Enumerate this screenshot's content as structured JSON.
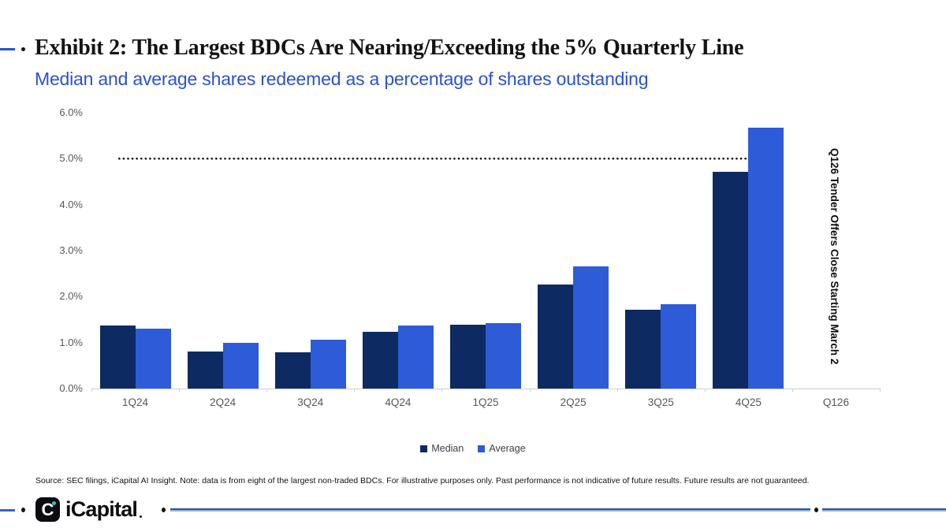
{
  "header": {
    "title": "Exhibit 2: The Largest BDCs Are Nearing/Exceeding the 5% Quarterly Line",
    "subtitle": "Median and average shares redeemed as a percentage of shares outstanding"
  },
  "chart_data": {
    "type": "bar",
    "categories": [
      "1Q24",
      "2Q24",
      "3Q24",
      "4Q24",
      "1Q25",
      "2Q25",
      "3Q25",
      "4Q25",
      "Q126"
    ],
    "series": [
      {
        "name": "Median",
        "color": "#0d2a63",
        "values": [
          1.37,
          0.81,
          0.79,
          1.24,
          1.39,
          2.27,
          1.71,
          4.71,
          null
        ]
      },
      {
        "name": "Average",
        "color": "#2e5bd7",
        "values": [
          1.31,
          1.0,
          1.06,
          1.38,
          1.43,
          2.65,
          1.84,
          5.68,
          null
        ]
      }
    ],
    "ylim": [
      0,
      6
    ],
    "ytick_step": 1,
    "yticks": [
      "0.0%",
      "1.0%",
      "2.0%",
      "3.0%",
      "4.0%",
      "5.0%",
      "6.0%"
    ],
    "reference_line": {
      "value": 5.0,
      "style": "dotted",
      "color": "#111111"
    },
    "annotation": "Q126 Tender Offers Close Starting March 2",
    "legend_position": "bottom",
    "grid": false
  },
  "footnote": "Source: SEC filings, iCapital AI Insight. Note: data is from eight of the largest non-traded BDCs. For illustrative purposes only. Past performance is not indicative of future results. Future results are not guaranteed.",
  "footer": {
    "brand": "iCapital",
    "logo_glyph": "C"
  },
  "colors": {
    "accent_blue": "#2a52cf",
    "median_bar": "#0d2a63",
    "average_bar": "#2e5bd7",
    "axis_text": "#55585d",
    "footer_line_dark": "#2e4f9f",
    "footer_line_light": "#8ab5e8",
    "logo_teal": "#35c4b5"
  }
}
